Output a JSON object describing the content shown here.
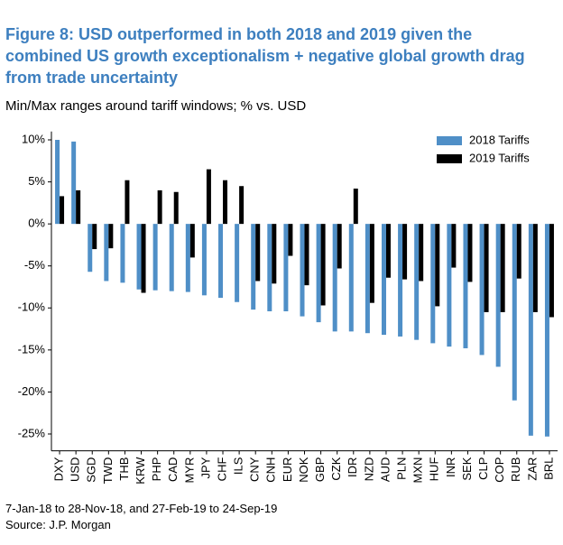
{
  "chart_data": {
    "type": "bar",
    "title": [
      "Figure 8: USD outperformed in both 2018 and 2019 given the",
      "combined US growth exceptionalism + negative global growth drag",
      "from trade uncertainty"
    ],
    "subtitle": "Min/Max ranges around tariff windows; % vs. USD",
    "footnotes": [
      "7-Jan-18 to 28-Nov-18, and 27-Feb-19 to 24-Sep-19",
      "Source: J.P. Morgan"
    ],
    "categories": [
      "DXY",
      "USD",
      "SGD",
      "TWD",
      "THB",
      "KRW",
      "PHP",
      "CAD",
      "MYR",
      "JPY",
      "CHF",
      "ILS",
      "CNY",
      "CNH",
      "EUR",
      "NOK",
      "GBP",
      "CZK",
      "IDR",
      "NZD",
      "AUD",
      "PLN",
      "MXN",
      "HUF",
      "INR",
      "SEK",
      "CLP",
      "COP",
      "RUB",
      "ZAR",
      "BRL"
    ],
    "series": [
      {
        "name": "2018 Tariffs",
        "color": "#4f8fc7",
        "values": [
          10.0,
          9.8,
          -5.7,
          -6.8,
          -7.0,
          -7.8,
          -7.9,
          -8.0,
          -8.1,
          -8.5,
          -8.8,
          -9.3,
          -10.2,
          -10.4,
          -10.4,
          -11.0,
          -11.7,
          -12.8,
          -12.8,
          -13.0,
          -13.2,
          -13.4,
          -13.8,
          -14.2,
          -14.6,
          -14.8,
          -15.6,
          -17.0,
          -21.0,
          -25.2,
          -25.3
        ]
      },
      {
        "name": "2019 Tariffs",
        "color": "#000000",
        "values": [
          3.3,
          4.0,
          -3.0,
          -2.9,
          5.2,
          -8.2,
          4.0,
          3.8,
          -4.0,
          6.5,
          5.2,
          4.5,
          -6.8,
          -7.1,
          -3.8,
          -7.3,
          -9.7,
          -5.3,
          4.2,
          -9.4,
          -6.4,
          -6.6,
          -6.8,
          -9.8,
          -5.2,
          -6.9,
          -10.5,
          -10.5,
          -6.5,
          -10.5,
          -11.1
        ]
      }
    ],
    "ylim": [
      -27,
      11
    ],
    "yticks": [
      {
        "value": 10,
        "label": "10%"
      },
      {
        "value": 5,
        "label": "5%"
      },
      {
        "value": 0,
        "label": "0%"
      },
      {
        "value": -5,
        "label": "-5%"
      },
      {
        "value": -10,
        "label": "-10%"
      },
      {
        "value": -15,
        "label": "-15%"
      },
      {
        "value": -20,
        "label": "-20%"
      },
      {
        "value": -25,
        "label": "-25%"
      }
    ],
    "legend": "upper right",
    "grid": false
  }
}
